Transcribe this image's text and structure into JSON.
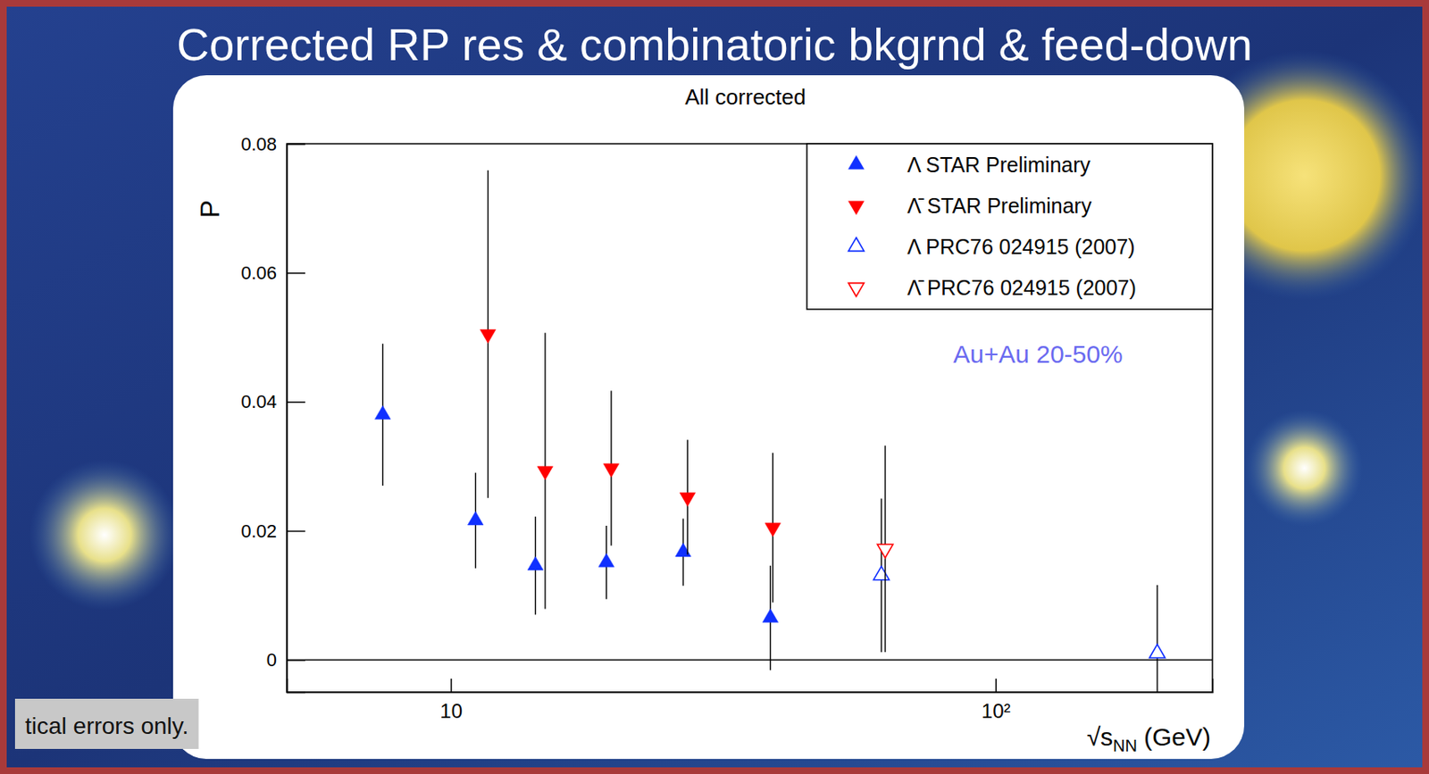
{
  "chart_data": {
    "type": "scatter",
    "slide_title": "Corrected RP res & combinatoric bkgrnd & feed-down",
    "title": "All corrected",
    "ylabel": "P",
    "xlabel": {
      "text": "√s",
      "subscript": "NN",
      "unit": "(GeV)"
    },
    "annotation": "Au+Au 20-50%",
    "note": "tical errors only.",
    "log": "x",
    "grid": false,
    "legend": "top-right",
    "xlim": [
      5,
      250
    ],
    "xticks": [
      10,
      {
        "value": 100,
        "label": "10²"
      }
    ],
    "ylim": [
      -0.005,
      0.08
    ],
    "yticks": [
      0,
      0.02,
      0.04,
      0.06,
      0.08
    ],
    "series": [
      {
        "name": "Λ STAR Preliminary",
        "color": "#1030ff",
        "marker": "triangle-up",
        "x": [
          7.5,
          11.1,
          14.3,
          19.3,
          26.7,
          38.6
        ],
        "values": [
          0.038,
          0.0216,
          0.0146,
          0.0151,
          0.0167,
          0.0065
        ],
        "errors": [
          0.011,
          0.0074,
          0.0076,
          0.0057,
          0.0052,
          0.0081
        ]
      },
      {
        "name": "Λ̄ STAR Preliminary",
        "color": "#ff0000",
        "marker": "triangle-down",
        "x": [
          11.7,
          14.9,
          19.7,
          27.2,
          39
        ],
        "values": [
          0.0505,
          0.0293,
          0.0297,
          0.0252,
          0.0205
        ],
        "errors": [
          0.0254,
          0.0214,
          0.012,
          0.0089,
          0.0116
        ]
      },
      {
        "name": "Λ PRC76 024915 (2007)",
        "color": "#1030ff",
        "marker": "open-triangle-up",
        "x": [
          61.7,
          198
        ],
        "values": [
          0.0131,
          0.001
        ],
        "errors": [
          0.0119,
          0.0106
        ]
      },
      {
        "name": "Λ̄ PRC76 024915 (2007)",
        "color": "#ff0000",
        "marker": "open-triangle-down",
        "x": [
          62.7
        ],
        "values": [
          0.0172
        ],
        "errors": [
          0.016
        ]
      }
    ]
  }
}
